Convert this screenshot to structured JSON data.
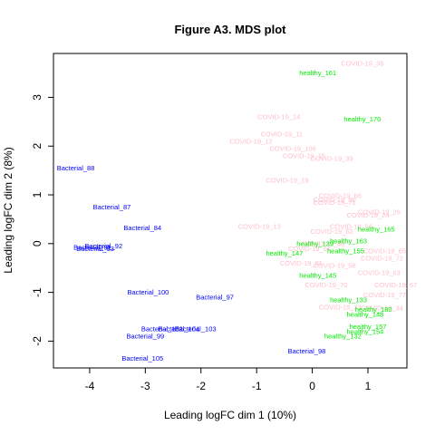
{
  "chart_data": {
    "type": "scatter",
    "title": "Figure A3. MDS plot",
    "xlabel": "Leading logFC dim 1 (10%)",
    "ylabel": "Leading logFC dim 2 (8%)",
    "xlim": [
      -4.65,
      1.7
    ],
    "ylim": [
      -2.55,
      3.9
    ],
    "xticks": [
      -4,
      -3,
      -2,
      -1,
      0,
      1
    ],
    "yticks": [
      -2,
      -1,
      0,
      1,
      2,
      3
    ],
    "grid": false,
    "legend": "none",
    "colors": {
      "Bacterial": "#0000ff",
      "COVID": "#ffc0cb",
      "healthy": "#00ee00"
    },
    "points": [
      {
        "label": "Bacterial_88",
        "group": "Bacterial",
        "x": -4.25,
        "y": 1.55
      },
      {
        "label": "Bacterial_87",
        "group": "Bacterial",
        "x": -3.6,
        "y": 0.75
      },
      {
        "label": "Bacterial_84",
        "group": "Bacterial",
        "x": -3.05,
        "y": 0.32
      },
      {
        "label": "Bacterial_92",
        "group": "Bacterial",
        "x": -3.75,
        "y": -0.05
      },
      {
        "label": "Bacterial_91",
        "group": "Bacterial",
        "x": -3.95,
        "y": -0.08
      },
      {
        "label": "Bacterial_83",
        "group": "Bacterial",
        "x": -3.9,
        "y": -0.1
      },
      {
        "label": "Bacterial_100",
        "group": "Bacterial",
        "x": -2.95,
        "y": -1.0
      },
      {
        "label": "Bacterial_97",
        "group": "Bacterial",
        "x": -1.75,
        "y": -1.1
      },
      {
        "label": "Bacterial_102",
        "group": "Bacterial",
        "x": -2.7,
        "y": -1.75
      },
      {
        "label": "Bacterial_104",
        "group": "Bacterial",
        "x": -2.4,
        "y": -1.75
      },
      {
        "label": "Bacterial_103",
        "group": "Bacterial",
        "x": -2.1,
        "y": -1.75
      },
      {
        "label": "Bacterial_99",
        "group": "Bacterial",
        "x": -3.0,
        "y": -1.9
      },
      {
        "label": "Bacterial_105",
        "group": "Bacterial",
        "x": -3.05,
        "y": -2.35
      },
      {
        "label": "Bacterial_98",
        "group": "Bacterial",
        "x": -0.1,
        "y": -2.2
      },
      {
        "label": "COVID-19_35",
        "group": "COVID",
        "x": 0.9,
        "y": 3.7
      },
      {
        "label": "COVID-19_14",
        "group": "COVID",
        "x": -0.6,
        "y": 2.6
      },
      {
        "label": "COVID-19_11",
        "group": "COVID",
        "x": -0.55,
        "y": 2.25
      },
      {
        "label": "COVID-19_12",
        "group": "COVID",
        "x": -1.1,
        "y": 2.1
      },
      {
        "label": "COVID-19_106",
        "group": "COVID",
        "x": -0.35,
        "y": 1.95
      },
      {
        "label": "COVID-19_15",
        "group": "COVID",
        "x": -0.15,
        "y": 1.8
      },
      {
        "label": "COVID-19_39",
        "group": "COVID",
        "x": 0.35,
        "y": 1.75
      },
      {
        "label": "COVID-19_19",
        "group": "COVID",
        "x": -0.45,
        "y": 1.3
      },
      {
        "label": "COVID-19_66",
        "group": "COVID",
        "x": 0.5,
        "y": 0.98
      },
      {
        "label": "COVID-19_50",
        "group": "COVID",
        "x": 0.4,
        "y": 0.9
      },
      {
        "label": "COVID-19_71",
        "group": "COVID",
        "x": 0.4,
        "y": 0.84
      },
      {
        "label": "COVID-19_26",
        "group": "COVID",
        "x": 1.2,
        "y": 0.65
      },
      {
        "label": "COVID-19_24",
        "group": "COVID",
        "x": 1.0,
        "y": 0.58
      },
      {
        "label": "COVID-19_13",
        "group": "COVID",
        "x": -0.95,
        "y": 0.35
      },
      {
        "label": "COVID-19_56",
        "group": "COVID",
        "x": 0.7,
        "y": 0.35
      },
      {
        "label": "COVID-19_62",
        "group": "COVID",
        "x": 0.35,
        "y": 0.25
      },
      {
        "label": "COVID-19_48",
        "group": "COVID",
        "x": 0.2,
        "y": 0.0
      },
      {
        "label": "COVID-19_64",
        "group": "COVID",
        "x": -0.05,
        "y": -0.1
      },
      {
        "label": "COVID-19_65",
        "group": "COVID",
        "x": 1.3,
        "y": -0.15
      },
      {
        "label": "COVID-19_72",
        "group": "COVID",
        "x": 1.25,
        "y": -0.3
      },
      {
        "label": "COVID-19_81",
        "group": "COVID",
        "x": -0.2,
        "y": -0.4
      },
      {
        "label": "COVID-19_58",
        "group": "COVID",
        "x": 0.4,
        "y": -0.45
      },
      {
        "label": "COVID-19_63",
        "group": "COVID",
        "x": 1.2,
        "y": -0.6
      },
      {
        "label": "COVID-19_70",
        "group": "COVID",
        "x": 0.25,
        "y": -0.85
      },
      {
        "label": "COVID-19_67",
        "group": "COVID",
        "x": 1.5,
        "y": -0.85
      },
      {
        "label": "COVID-19_77",
        "group": "COVID",
        "x": 1.3,
        "y": -1.05
      },
      {
        "label": "COVID-19_33",
        "group": "COVID",
        "x": 0.5,
        "y": -1.3
      },
      {
        "label": "COVID-19_34",
        "group": "COVID",
        "x": 1.25,
        "y": -1.32
      },
      {
        "label": "healthy_161",
        "group": "healthy",
        "x": 0.1,
        "y": 3.5
      },
      {
        "label": "healthy_170",
        "group": "healthy",
        "x": 0.9,
        "y": 2.55
      },
      {
        "label": "healthy_165",
        "group": "healthy",
        "x": 1.15,
        "y": 0.3
      },
      {
        "label": "healthy_163",
        "group": "healthy",
        "x": 0.65,
        "y": 0.05
      },
      {
        "label": "healthy_139",
        "group": "healthy",
        "x": 0.05,
        "y": 0.0
      },
      {
        "label": "healthy_155",
        "group": "healthy",
        "x": 0.6,
        "y": -0.15
      },
      {
        "label": "healthy_147",
        "group": "healthy",
        "x": -0.5,
        "y": -0.2
      },
      {
        "label": "healthy_145",
        "group": "healthy",
        "x": 0.1,
        "y": -0.65
      },
      {
        "label": "healthy_133",
        "group": "healthy",
        "x": 0.65,
        "y": -1.15
      },
      {
        "label": "healthy_180",
        "group": "healthy",
        "x": 1.1,
        "y": -1.35
      },
      {
        "label": "healthy_148",
        "group": "healthy",
        "x": 0.95,
        "y": -1.45
      },
      {
        "label": "healthy_157",
        "group": "healthy",
        "x": 1.0,
        "y": -1.7
      },
      {
        "label": "healthy_154",
        "group": "healthy",
        "x": 0.95,
        "y": -1.8
      },
      {
        "label": "healthy_132",
        "group": "healthy",
        "x": 0.55,
        "y": -1.9
      }
    ]
  }
}
